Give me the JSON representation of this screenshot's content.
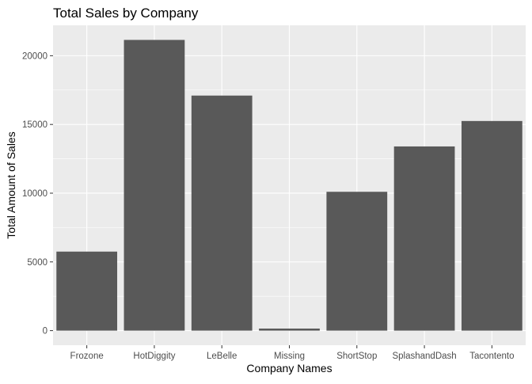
{
  "chart_data": {
    "type": "bar",
    "title": "Total Sales by Company",
    "xlabel": "Company Names",
    "ylabel": "Total Amount of Sales",
    "categories": [
      "Frozone",
      "HotDiggity",
      "LeBelle",
      "Missing",
      "ShortStop",
      "SplashandDash",
      "Tacontento"
    ],
    "values": [
      5750,
      21150,
      17100,
      150,
      10100,
      13400,
      15250
    ],
    "ylim": [
      -1060,
      22210
    ],
    "yticks": [
      0,
      5000,
      10000,
      15000,
      20000
    ],
    "ytick_labels": [
      "0",
      "5000",
      "10000",
      "15000",
      "20000"
    ],
    "grid": true,
    "legend": "none",
    "colors": {
      "bar": "#595959",
      "panel": "#ebebeb",
      "grid": "#ffffff"
    }
  }
}
